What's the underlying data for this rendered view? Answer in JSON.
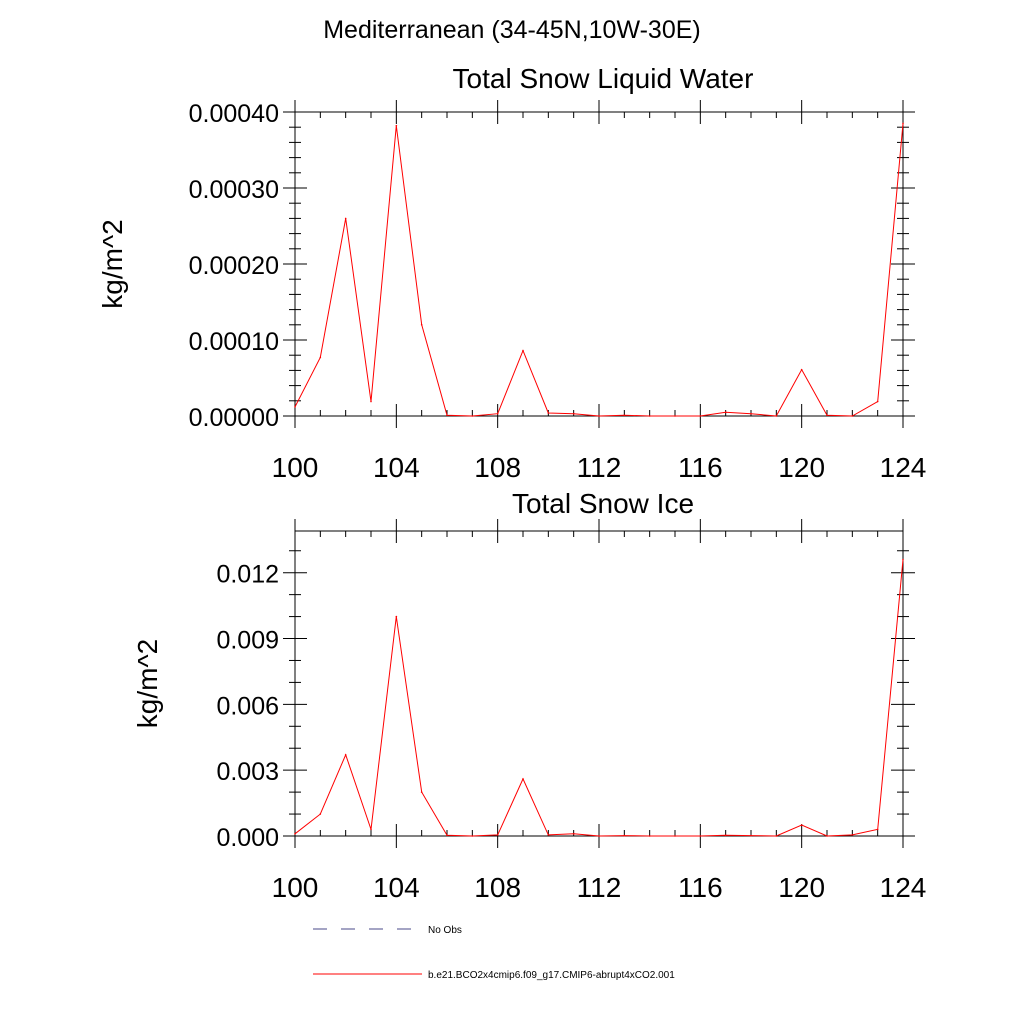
{
  "page": {
    "title": "Mediterranean (34-45N,10W-30E)"
  },
  "colors": {
    "model_line": "#ff0000",
    "obs_line": "#4a4a8a",
    "axis": "#000000"
  },
  "chart_data": [
    {
      "type": "line",
      "title": "Total Snow Liquid Water",
      "xlabel": "",
      "ylabel": "kg/m^2",
      "xlim": [
        100,
        124
      ],
      "ylim": [
        0,
        0.0004
      ],
      "xticks": [
        100,
        104,
        108,
        112,
        116,
        120,
        124
      ],
      "xtick_labels": [
        "100",
        "104",
        "108",
        "112",
        "116",
        "120",
        "124"
      ],
      "yticks": [
        0,
        0.0001,
        0.0002,
        0.0003,
        0.0004
      ],
      "ytick_labels": [
        "0.00000",
        "0.00010",
        "0.00020",
        "0.00030",
        "0.00040"
      ],
      "grid": false,
      "x": [
        100,
        101,
        102,
        103,
        104,
        105,
        106,
        107,
        108,
        109,
        110,
        111,
        112,
        113,
        114,
        115,
        116,
        117,
        118,
        119,
        120,
        121,
        122,
        123,
        124
      ],
      "series": [
        {
          "name": "b.e21.BCO2x4cmip6.f09_g17.CMIP6-abrupt4xCO2.001",
          "values": [
            1.2e-05,
            7.7e-05,
            0.00026,
            1.9e-05,
            0.000382,
            0.00012,
            1e-06,
            0.0,
            3e-06,
            8.6e-05,
            4e-06,
            3e-06,
            0.0,
            1e-06,
            0.0,
            0.0,
            0.0,
            5e-06,
            3e-06,
            0.0,
            6.1e-05,
            1e-06,
            0.0,
            1.9e-05,
            0.000385
          ]
        }
      ]
    },
    {
      "type": "line",
      "title": "Total Snow Ice",
      "xlabel": "",
      "ylabel": "kg/m^2",
      "xlim": [
        100,
        124
      ],
      "ylim": [
        0,
        0.0139
      ],
      "xticks": [
        100,
        104,
        108,
        112,
        116,
        120,
        124
      ],
      "xtick_labels": [
        "100",
        "104",
        "108",
        "112",
        "116",
        "120",
        "124"
      ],
      "yticks": [
        0,
        0.003,
        0.006,
        0.009,
        0.012
      ],
      "ytick_labels": [
        "0.000",
        "0.003",
        "0.006",
        "0.009",
        "0.012"
      ],
      "grid": false,
      "x": [
        100,
        101,
        102,
        103,
        104,
        105,
        106,
        107,
        108,
        109,
        110,
        111,
        112,
        113,
        114,
        115,
        116,
        117,
        118,
        119,
        120,
        121,
        122,
        123,
        124
      ],
      "series": [
        {
          "name": "b.e21.BCO2x4cmip6.f09_g17.CMIP6-abrupt4xCO2.001",
          "values": [
            0.0001,
            0.001,
            0.0037,
            0.0003,
            0.01,
            0.002,
            3e-05,
            0.0,
            5e-05,
            0.0026,
            5e-05,
            0.0001,
            0.0,
            2e-05,
            0.0,
            0.0,
            0.0,
            3e-05,
            2e-05,
            0.0,
            0.0005,
            0.0,
            5e-05,
            0.0003,
            0.0126
          ]
        }
      ]
    }
  ],
  "legend": {
    "placement": "bottom",
    "items": [
      {
        "label": "No Obs",
        "style": "dashed"
      },
      {
        "label": "b.e21.BCO2x4cmip6.f09_g17.CMIP6-abrupt4xCO2.001",
        "style": "solid"
      }
    ]
  }
}
